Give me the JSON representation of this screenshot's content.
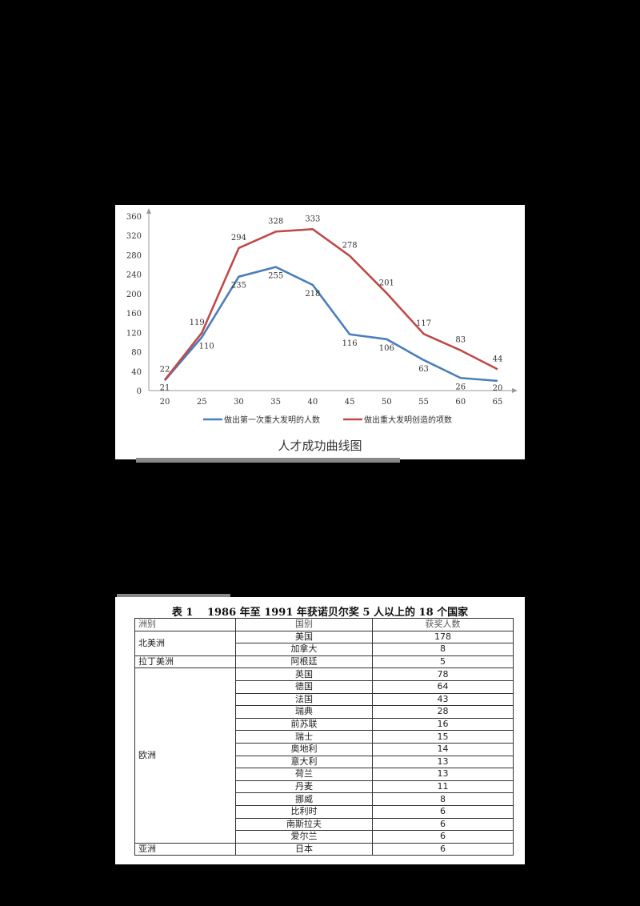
{
  "chart": {
    "title": "人才成功曲线图",
    "legend": [
      "做出第一次重大发明的人数",
      "做出重大发明创造的项数"
    ]
  },
  "chart_data": {
    "type": "line",
    "title": "人才成功曲线图",
    "xlabel": "",
    "ylabel": "",
    "x": [
      20,
      25,
      30,
      35,
      40,
      45,
      50,
      55,
      60,
      65
    ],
    "yticks": [
      0,
      40,
      80,
      120,
      160,
      200,
      240,
      280,
      320,
      360
    ],
    "ylim": [
      0,
      360
    ],
    "grid": false,
    "legend_position": "bottom",
    "series": [
      {
        "name": "做出第一次重大发明的人数",
        "color": "#4a7ebb",
        "values": [
          21,
          110,
          235,
          255,
          218,
          116,
          106,
          63,
          26,
          20
        ]
      },
      {
        "name": "做出重大发明创造的项数",
        "color": "#be4b48",
        "values": [
          22,
          119,
          294,
          328,
          333,
          278,
          201,
          117,
          83,
          44
        ]
      }
    ]
  },
  "table": {
    "title": "表 1　 1986 年至 1991 年获诺贝尔奖 5 人以上的 18 个国家",
    "headers": [
      "洲别",
      "国别",
      "获奖人数"
    ],
    "groups": [
      {
        "continent": "北美洲",
        "rows": [
          [
            "美国",
            "178"
          ],
          [
            "加拿大",
            "8"
          ]
        ]
      },
      {
        "continent": "拉丁美洲",
        "rows": [
          [
            "阿根廷",
            "5"
          ]
        ]
      },
      {
        "continent": "欧洲",
        "rows": [
          [
            "英国",
            "78"
          ],
          [
            "德国",
            "64"
          ],
          [
            "法国",
            "43"
          ],
          [
            "瑞典",
            "28"
          ],
          [
            "前苏联",
            "16"
          ],
          [
            "瑞士",
            "15"
          ],
          [
            "奥地利",
            "14"
          ],
          [
            "意大利",
            "13"
          ],
          [
            "荷兰",
            "13"
          ],
          [
            "丹麦",
            "11"
          ],
          [
            "挪威",
            "8"
          ],
          [
            "比利时",
            "6"
          ],
          [
            "南斯拉夫",
            "6"
          ],
          [
            "爱尔兰",
            "6"
          ]
        ]
      },
      {
        "continent": "亚洲",
        "rows": [
          [
            "日本",
            "6"
          ]
        ]
      }
    ]
  }
}
